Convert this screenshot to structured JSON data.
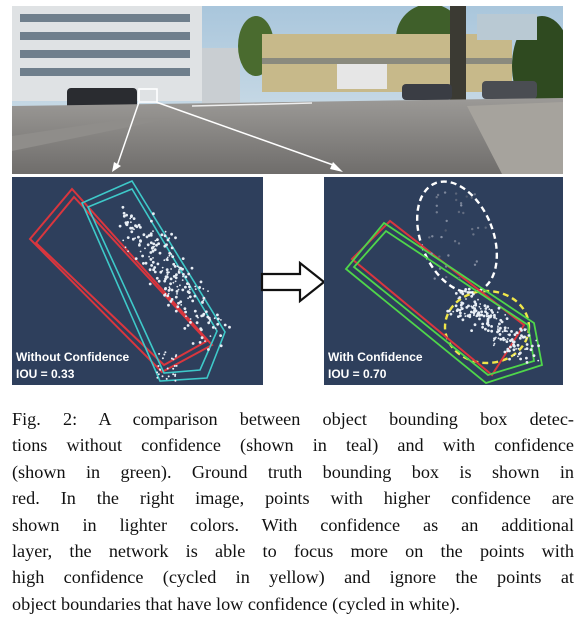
{
  "figure": {
    "panels": {
      "left": {
        "title": "Without Confidence",
        "iou": "IOU = 0.33"
      },
      "right": {
        "title": "With Confidence",
        "iou": "IOU = 0.70"
      }
    },
    "colors": {
      "ground_truth": "#d9363e",
      "without_confidence": "#3ec9c9",
      "with_confidence": "#4fd64a",
      "panel_background": "#2e3f5c",
      "high_confidence_circle": "#f0e64a",
      "low_confidence_circle": "#ffffff"
    },
    "icons": [
      "arrow-right-icon"
    ]
  },
  "caption": {
    "lines": [
      "Fig. 2: A comparison between object bounding box detec-",
      "tions without confidence (shown in teal) and with confidence",
      "(shown in green). Ground truth bounding box is shown in",
      "red. In the right image, points with higher confidence are",
      "shown in lighter colors. With confidence as an additional",
      "layer, the network is able to focus more on the points with",
      "high confidence (cycled in yellow) and ignore the points at",
      "object boundaries that have low confidence (cycled in white)."
    ]
  }
}
